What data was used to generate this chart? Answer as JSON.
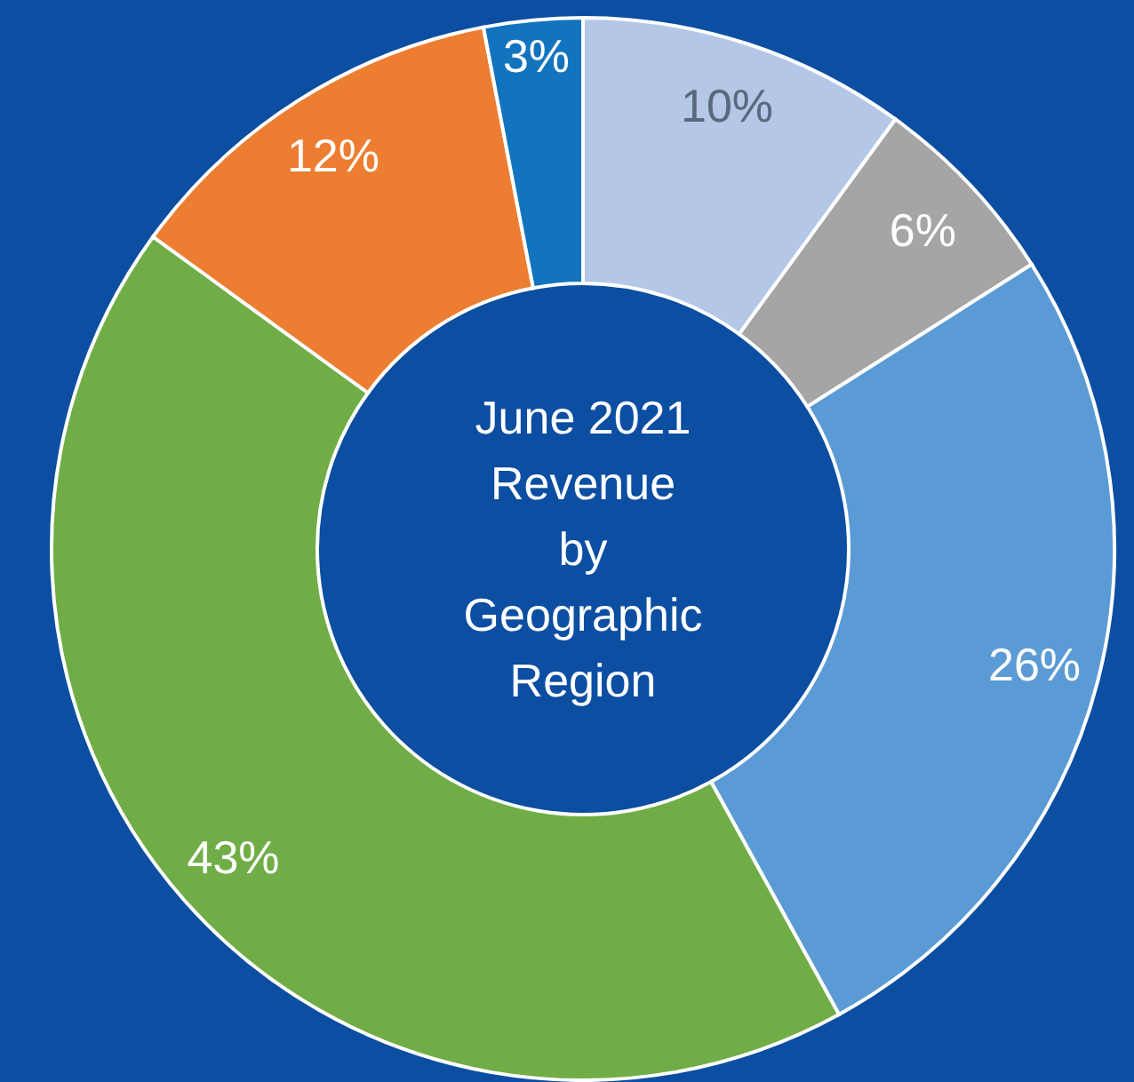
{
  "chart_data": {
    "type": "donut",
    "title": "June 2021 Revenue by Geographic Region",
    "categories": [
      null,
      null,
      null,
      null,
      null,
      null
    ],
    "values": [
      10,
      6,
      26,
      43,
      12,
      3
    ],
    "value_labels": [
      "10%",
      "6%",
      "26%",
      "43%",
      "12%",
      "3%"
    ],
    "colors": [
      "#b4c7e7",
      "#a5a5a5",
      "#5b9bd5",
      "#70ad47",
      "#ed7d31",
      "#1273be"
    ]
  }
}
